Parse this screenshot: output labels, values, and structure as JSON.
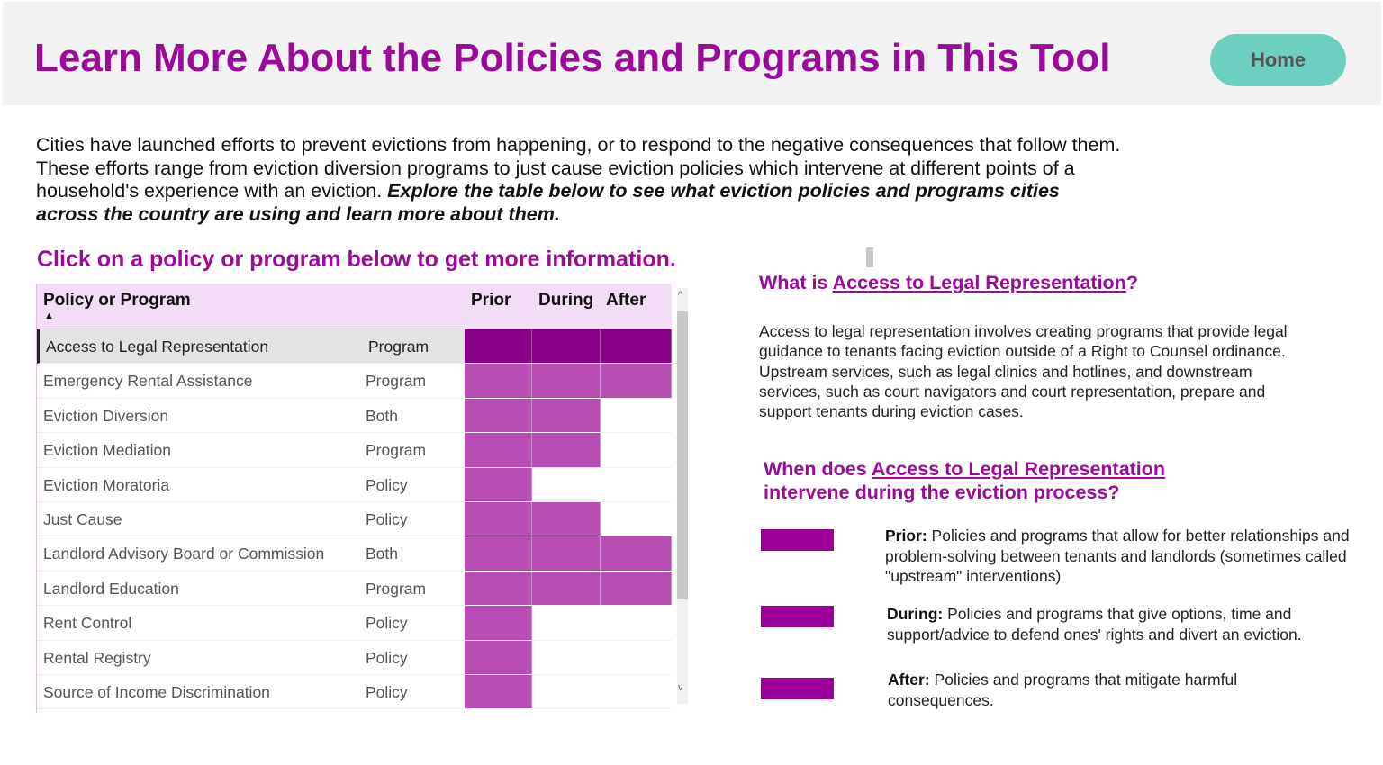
{
  "header": {
    "title": "Learn More About the Policies and Programs in This Tool",
    "home_label": "Home"
  },
  "intro": {
    "text": "Cities have launched efforts to prevent evictions from happening, or to respond to the negative consequences that follow them. These efforts range from eviction diversion programs to just cause eviction policies which intervene at different points of a household's experience with an eviction. ",
    "emphasis": "Explore the table below to see what eviction policies and programs cities across the country are using and learn more about them."
  },
  "table": {
    "subtitle": "Click on a policy or program below to get more information.",
    "columns": [
      "Policy or Program",
      "",
      "Prior",
      "During",
      "After"
    ],
    "colors": {
      "selected": "#870087",
      "active": "#b84db4",
      "inactive": "#ffffff"
    },
    "rows": [
      {
        "name": "Access to Legal Representation",
        "type": "Program",
        "prior": true,
        "during": true,
        "after": true,
        "selected": true
      },
      {
        "name": "Emergency Rental Assistance",
        "type": "Program",
        "prior": true,
        "during": true,
        "after": true
      },
      {
        "name": "Eviction Diversion",
        "type": "Both",
        "prior": true,
        "during": true,
        "after": false
      },
      {
        "name": "Eviction Mediation",
        "type": "Program",
        "prior": true,
        "during": true,
        "after": false
      },
      {
        "name": "Eviction Moratoria",
        "type": "Policy",
        "prior": true,
        "during": false,
        "after": false
      },
      {
        "name": "Just Cause",
        "type": "Policy",
        "prior": true,
        "during": true,
        "after": false
      },
      {
        "name": "Landlord Advisory Board or Commission",
        "type": "Both",
        "prior": true,
        "during": true,
        "after": true
      },
      {
        "name": "Landlord Education",
        "type": "Program",
        "prior": true,
        "during": true,
        "after": true
      },
      {
        "name": "Rent Control",
        "type": "Policy",
        "prior": true,
        "during": false,
        "after": false
      },
      {
        "name": "Rental Registry",
        "type": "Policy",
        "prior": true,
        "during": false,
        "after": false
      },
      {
        "name": "Source of Income Discrimination",
        "type": "Policy",
        "prior": true,
        "during": false,
        "after": false
      }
    ]
  },
  "detail": {
    "q1_prefix": "What is ",
    "selected": "Access to Legal Representation",
    "q1_suffix": "?",
    "description": "Access to legal representation involves creating programs that provide legal guidance to tenants facing eviction outside of a Right to Counsel ordinance. Upstream services, such as legal clinics and hotlines, and downstream services, such as court navigators and court representation, prepare and support tenants during eviction cases.",
    "q2_prefix": "When does ",
    "q2_suffix": "intervene during the eviction process?",
    "legend_color": "#9b009b",
    "legend": [
      {
        "label": "Prior:",
        "text": " Policies and programs that allow for better relationships and problem-solving between tenants and landlords (sometimes called \"upstream\" interventions)"
      },
      {
        "label": "During:",
        "text": " Policies and programs that give options, time and support/advice to defend ones' rights and divert an eviction."
      },
      {
        "label": "After:",
        "text": " Policies and programs that mitigate harmful consequences."
      }
    ]
  }
}
